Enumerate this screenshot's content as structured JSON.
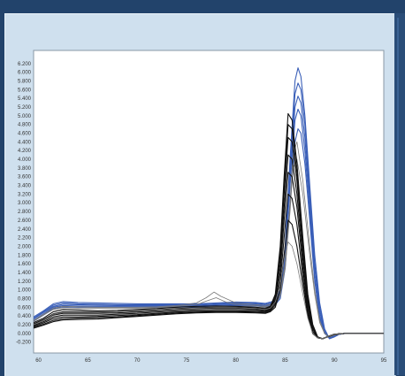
{
  "chart_data": {
    "type": "line",
    "title": "",
    "xlabel": "",
    "ylabel": "",
    "xlim": [
      59.5,
      95
    ],
    "ylim": [
      -0.45,
      6.5
    ],
    "xticks": [
      60,
      65,
      70,
      75,
      80,
      85,
      90,
      95
    ],
    "yticks": [
      -0.2,
      0.0,
      0.2,
      0.4,
      0.6,
      0.8,
      1.0,
      1.2,
      1.4,
      1.6,
      1.8,
      2.0,
      2.2,
      2.4,
      2.6,
      2.8,
      3.0,
      3.2,
      3.4,
      3.6,
      3.8,
      4.0,
      4.2,
      4.4,
      4.6,
      4.8,
      5.0,
      5.2,
      5.4,
      5.6,
      5.8,
      6.0,
      6.2
    ],
    "xtick_labels": [
      "60",
      "65",
      "70",
      "75",
      "80",
      "85",
      "90",
      "95"
    ],
    "ytick_labels": [
      "-0.200",
      "0.000",
      "0.200",
      "0.400",
      "0.600",
      "0.800",
      "1.000",
      "1.200",
      "1.400",
      "1.600",
      "1.800",
      "2.000",
      "2.200",
      "2.400",
      "2.600",
      "2.800",
      "3.000",
      "3.200",
      "3.400",
      "3.600",
      "3.800",
      "4.000",
      "4.200",
      "4.400",
      "4.600",
      "4.800",
      "5.000",
      "5.200",
      "5.400",
      "5.600",
      "5.800",
      "6.000",
      "6.200"
    ],
    "grid": false,
    "legend": "none",
    "colors": {
      "blue_series": "#3a5fb8",
      "black_series": "#111111",
      "gray_series": "#7a7a7a",
      "plot_background": "#ffffff",
      "panel_background": "#cfe0ee",
      "frame_background": "#22436b"
    },
    "series": [
      {
        "color": "#3a5fb8",
        "x": [
          59.5,
          60.5,
          61.5,
          62.5,
          64,
          66,
          68,
          70,
          72,
          74,
          76,
          78,
          80,
          82,
          83,
          84,
          84.5,
          85,
          85.5,
          86,
          86.3,
          86.6,
          87,
          87.5,
          88,
          88.5,
          89,
          89.5,
          90,
          90.5,
          91,
          92,
          95
        ],
        "y": [
          0.38,
          0.52,
          0.68,
          0.73,
          0.71,
          0.7,
          0.69,
          0.68,
          0.68,
          0.68,
          0.68,
          0.7,
          0.72,
          0.71,
          0.69,
          0.75,
          1.0,
          2.0,
          4.0,
          5.8,
          6.1,
          5.9,
          5.0,
          3.4,
          1.8,
          0.7,
          0.1,
          -0.12,
          -0.08,
          -0.02,
          0.0,
          0.0,
          0.0
        ]
      },
      {
        "color": "#3a5fb8",
        "x": [
          59.5,
          60.5,
          61.5,
          62.5,
          64,
          66,
          68,
          70,
          72,
          74,
          76,
          78,
          80,
          82,
          83,
          84,
          84.5,
          85,
          85.5,
          86,
          86.3,
          86.6,
          87,
          87.5,
          88,
          88.5,
          89,
          89.5,
          90,
          90.5,
          91,
          92,
          95
        ],
        "y": [
          0.35,
          0.5,
          0.65,
          0.7,
          0.68,
          0.67,
          0.66,
          0.66,
          0.66,
          0.66,
          0.66,
          0.68,
          0.7,
          0.69,
          0.67,
          0.72,
          0.95,
          1.9,
          3.8,
          5.5,
          5.75,
          5.6,
          4.8,
          3.2,
          1.6,
          0.6,
          0.05,
          -0.12,
          -0.07,
          -0.02,
          0.0,
          0.0,
          0.0
        ]
      },
      {
        "color": "#3a5fb8",
        "x": [
          59.5,
          60.5,
          61.5,
          62.5,
          64,
          66,
          68,
          70,
          72,
          74,
          76,
          78,
          80,
          82,
          83,
          84,
          84.5,
          85,
          85.5,
          86,
          86.3,
          86.6,
          87,
          87.5,
          88,
          88.5,
          89,
          89.5,
          90,
          90.5,
          91,
          92,
          95
        ],
        "y": [
          0.33,
          0.48,
          0.62,
          0.67,
          0.66,
          0.65,
          0.64,
          0.64,
          0.64,
          0.64,
          0.65,
          0.67,
          0.68,
          0.67,
          0.65,
          0.7,
          0.9,
          1.8,
          3.6,
          5.2,
          5.45,
          5.3,
          4.5,
          3.0,
          1.5,
          0.5,
          0.02,
          -0.12,
          -0.07,
          -0.02,
          0.0,
          0.0,
          0.0
        ]
      },
      {
        "color": "#3a5fb8",
        "x": [
          59.5,
          60.5,
          61.5,
          62.5,
          64,
          66,
          68,
          70,
          72,
          74,
          76,
          78,
          80,
          82,
          83,
          84,
          84.5,
          85,
          85.5,
          86,
          86.3,
          86.6,
          87,
          87.5,
          88,
          88.5,
          89,
          89.5,
          90,
          90.5,
          91,
          92,
          95
        ],
        "y": [
          0.3,
          0.45,
          0.6,
          0.64,
          0.63,
          0.62,
          0.62,
          0.62,
          0.62,
          0.62,
          0.63,
          0.65,
          0.66,
          0.65,
          0.63,
          0.68,
          0.85,
          1.7,
          3.4,
          4.9,
          5.15,
          5.0,
          4.2,
          2.8,
          1.3,
          0.4,
          0.0,
          -0.1,
          -0.06,
          -0.02,
          0.0,
          0.0,
          0.0
        ]
      },
      {
        "color": "#3a5fb8",
        "x": [
          59.5,
          60.5,
          61.5,
          62.5,
          64,
          66,
          68,
          70,
          72,
          74,
          76,
          78,
          80,
          82,
          83,
          84,
          84.5,
          85,
          85.5,
          86,
          86.3,
          86.6,
          87,
          87.5,
          88,
          88.5,
          89,
          89.5,
          90,
          90.5,
          91,
          92,
          95
        ],
        "y": [
          0.28,
          0.42,
          0.57,
          0.61,
          0.6,
          0.6,
          0.6,
          0.6,
          0.6,
          0.6,
          0.61,
          0.63,
          0.64,
          0.63,
          0.61,
          0.66,
          0.8,
          1.5,
          3.0,
          4.4,
          4.7,
          4.6,
          3.9,
          2.6,
          1.2,
          0.35,
          0.0,
          -0.1,
          -0.06,
          -0.02,
          0.0,
          0.0,
          0.0
        ]
      },
      {
        "color": "#7a7a7a",
        "x": [
          59.5,
          60.5,
          61.5,
          62.5,
          64,
          66,
          68,
          70,
          72,
          74,
          76,
          77,
          77.8,
          78.5,
          80,
          82,
          83,
          84,
          84.5,
          85,
          85.5,
          85.8,
          86.2,
          86.8,
          87.5,
          88,
          88.5,
          89,
          89.5,
          90,
          91,
          92,
          95
        ],
        "y": [
          0.3,
          0.44,
          0.58,
          0.62,
          0.61,
          0.6,
          0.6,
          0.6,
          0.61,
          0.64,
          0.7,
          0.82,
          0.95,
          0.85,
          0.7,
          0.66,
          0.64,
          0.7,
          0.9,
          1.6,
          3.0,
          4.1,
          4.4,
          3.5,
          2.0,
          1.0,
          0.3,
          0.0,
          -0.08,
          -0.04,
          0.0,
          0.0,
          0.0
        ]
      },
      {
        "color": "#7a7a7a",
        "x": [
          59.5,
          60.5,
          61.5,
          62.5,
          64,
          66,
          68,
          70,
          72,
          74,
          76,
          77,
          78,
          79,
          80,
          82,
          83,
          84,
          84.5,
          85,
          85.5,
          85.8,
          86.2,
          86.8,
          87.5,
          88,
          88.5,
          89,
          89.5,
          90,
          91,
          92,
          95
        ],
        "y": [
          0.28,
          0.42,
          0.55,
          0.59,
          0.58,
          0.58,
          0.58,
          0.58,
          0.59,
          0.62,
          0.66,
          0.74,
          0.82,
          0.72,
          0.66,
          0.63,
          0.61,
          0.66,
          0.85,
          1.5,
          2.8,
          3.8,
          4.0,
          3.2,
          1.8,
          0.9,
          0.25,
          0.0,
          -0.08,
          -0.04,
          0.0,
          0.0,
          0.0
        ]
      },
      {
        "color": "#111111",
        "x": [
          59.5,
          60.5,
          61.5,
          62.5,
          64,
          66,
          68,
          70,
          72,
          74,
          76,
          78,
          80,
          82,
          83,
          83.5,
          84,
          84.5,
          84.9,
          85.3,
          85.7,
          86.2,
          86.8,
          87.3,
          87.8,
          88.3,
          88.8,
          89.5,
          90,
          91,
          95
        ],
        "y": [
          0.25,
          0.35,
          0.5,
          0.55,
          0.54,
          0.52,
          0.53,
          0.55,
          0.57,
          0.6,
          0.62,
          0.63,
          0.62,
          0.6,
          0.58,
          0.62,
          0.9,
          2.0,
          3.6,
          5.05,
          4.9,
          3.9,
          2.2,
          0.9,
          0.2,
          -0.08,
          -0.12,
          -0.06,
          -0.02,
          0.0,
          0.0
        ]
      },
      {
        "color": "#111111",
        "x": [
          59.5,
          60.5,
          61.5,
          62.5,
          64,
          66,
          68,
          70,
          72,
          74,
          76,
          78,
          80,
          82,
          83,
          83.5,
          84,
          84.5,
          84.9,
          85.3,
          85.7,
          86.2,
          86.8,
          87.3,
          87.8,
          88.3,
          88.8,
          89.5,
          90,
          91,
          95
        ],
        "y": [
          0.22,
          0.32,
          0.45,
          0.5,
          0.5,
          0.49,
          0.5,
          0.52,
          0.54,
          0.57,
          0.59,
          0.6,
          0.6,
          0.58,
          0.56,
          0.6,
          0.85,
          1.9,
          3.4,
          4.8,
          4.7,
          3.7,
          2.0,
          0.8,
          0.15,
          -0.1,
          -0.12,
          -0.06,
          -0.02,
          0.0,
          0.0
        ]
      },
      {
        "color": "#111111",
        "x": [
          59.5,
          60.5,
          61.5,
          62.5,
          64,
          66,
          68,
          70,
          72,
          74,
          76,
          78,
          80,
          82,
          83,
          83.5,
          84,
          84.5,
          84.9,
          85.3,
          85.7,
          86.2,
          86.8,
          87.3,
          87.8,
          88.3,
          88.8,
          89.5,
          90,
          91,
          95
        ],
        "y": [
          0.2,
          0.3,
          0.42,
          0.46,
          0.46,
          0.46,
          0.47,
          0.49,
          0.52,
          0.55,
          0.57,
          0.58,
          0.58,
          0.56,
          0.54,
          0.58,
          0.8,
          1.8,
          3.2,
          4.5,
          4.4,
          3.5,
          1.9,
          0.7,
          0.1,
          -0.1,
          -0.12,
          -0.06,
          -0.02,
          0.0,
          0.0
        ]
      },
      {
        "color": "#111111",
        "x": [
          59.5,
          60.5,
          61.5,
          62.5,
          64,
          66,
          68,
          70,
          72,
          74,
          76,
          78,
          80,
          82,
          83,
          83.5,
          84,
          84.5,
          84.9,
          85.3,
          85.7,
          86.2,
          86.8,
          87.3,
          87.8,
          88.3,
          88.8,
          89.5,
          90,
          91,
          95
        ],
        "y": [
          0.18,
          0.27,
          0.38,
          0.42,
          0.42,
          0.42,
          0.44,
          0.46,
          0.49,
          0.52,
          0.54,
          0.55,
          0.55,
          0.54,
          0.52,
          0.56,
          0.75,
          1.6,
          2.9,
          4.1,
          4.0,
          3.2,
          1.7,
          0.6,
          0.05,
          -0.1,
          -0.12,
          -0.06,
          -0.02,
          0.0,
          0.0
        ]
      },
      {
        "color": "#111111",
        "x": [
          59.5,
          60.5,
          61.5,
          62.5,
          64,
          66,
          68,
          70,
          72,
          74,
          76,
          78,
          80,
          82,
          83,
          83.5,
          84,
          84.5,
          84.9,
          85.3,
          85.7,
          86.2,
          86.8,
          87.3,
          87.8,
          88.3,
          88.8,
          89.5,
          90,
          91,
          95
        ],
        "y": [
          0.16,
          0.24,
          0.34,
          0.38,
          0.38,
          0.39,
          0.41,
          0.43,
          0.46,
          0.49,
          0.51,
          0.52,
          0.52,
          0.51,
          0.5,
          0.54,
          0.7,
          1.4,
          2.6,
          3.7,
          3.6,
          2.9,
          1.5,
          0.5,
          0.0,
          -0.1,
          -0.12,
          -0.06,
          -0.02,
          0.0,
          0.0
        ]
      },
      {
        "color": "#111111",
        "x": [
          59.5,
          60.5,
          61.5,
          62.5,
          64,
          66,
          68,
          70,
          72,
          74,
          76,
          78,
          80,
          82,
          83,
          83.5,
          84,
          84.5,
          84.9,
          85.3,
          85.7,
          86.2,
          86.8,
          87.3,
          87.8,
          88.3,
          88.8,
          89.5,
          90,
          91,
          95
        ],
        "y": [
          0.14,
          0.21,
          0.3,
          0.34,
          0.35,
          0.36,
          0.38,
          0.41,
          0.44,
          0.47,
          0.49,
          0.5,
          0.5,
          0.49,
          0.48,
          0.52,
          0.65,
          1.2,
          2.2,
          3.2,
          3.1,
          2.5,
          1.3,
          0.45,
          0.0,
          -0.1,
          -0.12,
          -0.06,
          -0.02,
          0.0,
          0.0
        ]
      },
      {
        "color": "#111111",
        "x": [
          59.5,
          60.5,
          61.5,
          62.5,
          64,
          66,
          68,
          70,
          72,
          74,
          76,
          78,
          80,
          82,
          83,
          83.5,
          84,
          84.5,
          84.9,
          85.3,
          85.7,
          86.2,
          86.8,
          87.3,
          87.8,
          88.3,
          88.8,
          89.5,
          90,
          91,
          95
        ],
        "y": [
          0.12,
          0.19,
          0.27,
          0.31,
          0.32,
          0.33,
          0.36,
          0.39,
          0.42,
          0.45,
          0.47,
          0.48,
          0.48,
          0.47,
          0.46,
          0.5,
          0.6,
          1.0,
          1.8,
          2.6,
          2.5,
          2.0,
          1.1,
          0.4,
          0.0,
          -0.1,
          -0.12,
          -0.06,
          -0.02,
          0.0,
          0.0
        ]
      },
      {
        "color": "#7a7a7a",
        "x": [
          59.5,
          60.5,
          61.5,
          62.5,
          64,
          66,
          68,
          70,
          72,
          74,
          76,
          78,
          80,
          82,
          83,
          83.5,
          84,
          84.5,
          84.9,
          85.3,
          85.7,
          86.2,
          86.8,
          87.3,
          87.8,
          88.3,
          88.8,
          89.5,
          90,
          91,
          95
        ],
        "y": [
          0.2,
          0.3,
          0.44,
          0.48,
          0.48,
          0.48,
          0.49,
          0.51,
          0.53,
          0.56,
          0.58,
          0.59,
          0.59,
          0.57,
          0.55,
          0.58,
          0.72,
          1.1,
          1.7,
          2.1,
          2.0,
          1.6,
          0.9,
          0.35,
          0.0,
          -0.1,
          -0.12,
          -0.06,
          -0.02,
          0.0,
          0.0
        ]
      }
    ]
  }
}
